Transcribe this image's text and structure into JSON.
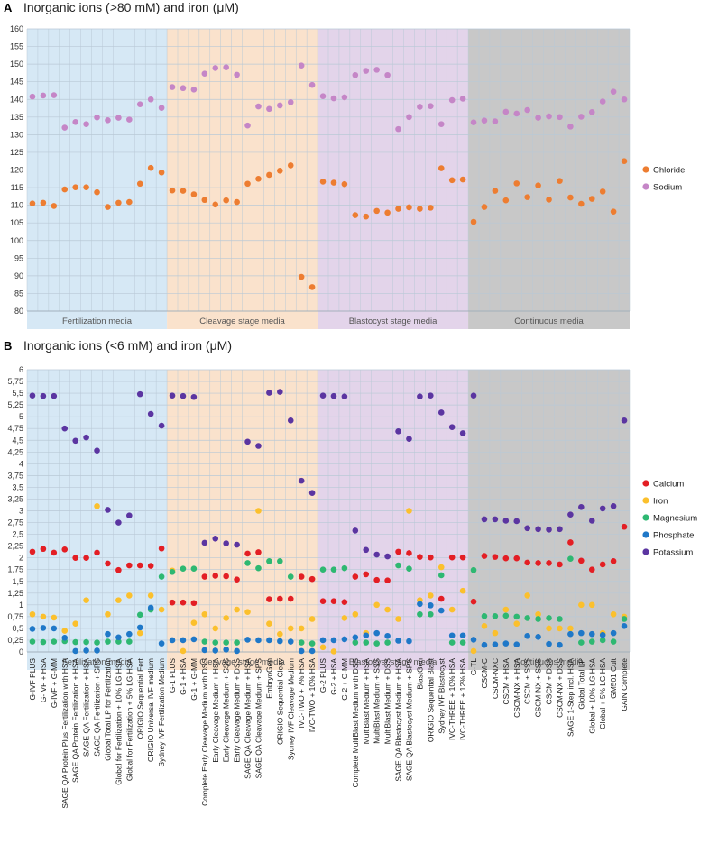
{
  "colors": {
    "Chloride": "#ed7d31",
    "Sodium": "#c586c7",
    "Calcium": "#e31e24",
    "Iron": "#fbc02d",
    "Magnesium": "#2eb872",
    "Phosphate": "#1f78c8",
    "Potassium": "#5b35a1",
    "groups": [
      "#d6e8f5",
      "#fae2cc",
      "#e3d4ea",
      "#c8c8c8"
    ],
    "group_bar": [
      "#c9e0f0",
      "#f4d2b3",
      "#d4c1df",
      "#b9b9b9"
    ],
    "grid": "#b9c9d6"
  },
  "categories": [
    "G-IVF PLUS",
    "G-IVF + HSA",
    "G-IVF + G-MM",
    "SAGE QA Protein Plus Fertilization with HSA",
    "SAGE QA Protein Fertilization + HSA",
    "SAGE QA Fertilization + HSA",
    "SAGE QA Fertilization + SPS",
    "Global Total LP for Fertilization",
    "Global for Fertilization + 10% LG HSA",
    "Global for Fertilization + 5% LG HSA",
    "ORIGIO Sequential Fert",
    "ORIGIO Universal IVF medium",
    "Sydney IVF Fertilization Medium",
    "G-1 PLUS",
    "G-1 + HSA",
    "G-1 + G-MM",
    "Complete Early Cleavage Medium with DSS",
    "Early Cleavage Medium + HSA",
    "Early Cleavage Medium + SSS",
    "Early Cleavage Medium + DSS",
    "SAGE QA Cleavage Medium + HSA",
    "SAGE QA Cleavage Medium + SPS",
    "EmbryoGen",
    "ORIGIO Sequential Cleav",
    "Sydney IVF Cleavage Medium",
    "IVC-TWO + 7% HSA",
    "IVC-TWO + 10% HSA",
    "G-2 PLUS",
    "G-2 + HSA",
    "G-2 + G-MM",
    "Complete MultiBlast Medium with DSS",
    "MultiBlast Medium + HSA",
    "MultiBlast Medium + SSS",
    "MultiBlast Medium + DSS",
    "SAGE QA Blastocyst Medium + HSA",
    "SAGE QA Blastocyst Medium + SPS",
    "BlastGen",
    "ORIGIO Sequential Blast",
    "Sydney IVF Blastocyst",
    "IVC-THREE + 10% HSA",
    "IVC-THREE + 12% HSA",
    "G-TL",
    "CSCM-C",
    "CSCM-NXC",
    "CSCM + HSA",
    "CSCM-NX + HSA",
    "CSCM + SSS",
    "CSCM-NX + SSS",
    "CSCM + DSS",
    "CSCM-NX + DSS",
    "SAGE 1-Step incl. HSA",
    "Global Total LP",
    "Global + 10% LG HSA",
    "Global + 5% LG HSA",
    "GM501 Cult",
    "GAIN Complete"
  ],
  "groups": [
    {
      "label": "Fertilization media",
      "start": 0,
      "end": 12
    },
    {
      "label": "Cleavage stage media",
      "start": 13,
      "end": 26
    },
    {
      "label": "Blastocyst stage media",
      "start": 27,
      "end": 40
    },
    {
      "label": "Continuous media",
      "start": 41,
      "end": 55
    }
  ],
  "chart_data": [
    {
      "type": "scatter",
      "panel": "A",
      "title": "Inorganic ions (>80 mM) and iron (μM)",
      "ylim": [
        80,
        160
      ],
      "yticks": [
        "80",
        "85",
        "90",
        "95",
        "100",
        "105",
        "110",
        "115",
        "120",
        "125",
        "130",
        "135",
        "140",
        "145",
        "150",
        "155",
        "160"
      ],
      "legend": [
        "Chloride",
        "Sodium"
      ],
      "series": [
        {
          "name": "Chloride",
          "values": [
            110.5,
            110.7,
            109.8,
            114.5,
            115.1,
            115.1,
            113.7,
            109.5,
            110.7,
            110.9,
            116.1,
            120.6,
            119.3,
            114.2,
            114.1,
            113.1,
            111.5,
            110.2,
            111.4,
            110.9,
            116.1,
            117.5,
            118.6,
            119.8,
            121.3,
            89.7,
            86.8,
            116.7,
            116.4,
            116.0,
            107.2,
            106.8,
            108.4,
            107.9,
            109.0,
            109.4,
            109.0,
            109.3,
            120.5,
            117.1,
            117.3,
            105.3,
            109.5,
            114.1,
            111.4,
            116.2,
            112.3,
            115.6,
            111.6,
            116.9,
            112.2,
            110.4,
            111.8,
            113.9,
            108.2,
            122.5
          ]
        },
        {
          "name": "Sodium",
          "values": [
            140.8,
            141.1,
            141.2,
            132.0,
            133.6,
            133.0,
            134.9,
            134.1,
            134.8,
            134.3,
            138.6,
            140.0,
            137.6,
            143.5,
            143.2,
            142.8,
            147.3,
            148.9,
            149.1,
            147.0,
            132.6,
            138.0,
            137.3,
            138.3,
            139.2,
            149.6,
            144.1,
            140.9,
            140.3,
            140.6,
            146.9,
            148.1,
            148.4,
            146.9,
            131.6,
            135.0,
            137.9,
            138.1,
            133.0,
            139.8,
            140.2,
            133.5,
            134.0,
            133.8,
            136.5,
            136.0,
            137.0,
            134.8,
            135.2,
            135.0,
            132.3,
            135.1,
            136.4,
            139.4,
            142.2,
            140.0
          ]
        }
      ]
    },
    {
      "type": "scatter",
      "panel": "B",
      "title": "Inorganic ions (<6 mM) and iron (μM)",
      "ylim": [
        0,
        6
      ],
      "yticks": [
        "0",
        "0,25",
        "0,5",
        "0,75",
        "1",
        "1,25",
        "1,5",
        "1,75",
        "2",
        "2,25",
        "2,5",
        "2,75",
        "3",
        "3,25",
        "3,5",
        "3,75",
        "4",
        "4,25",
        "4,5",
        "4,75",
        "5",
        "5,25",
        "5,5",
        "5,75",
        "6"
      ],
      "legend": [
        "Calcium",
        "Iron",
        "Magnesium",
        "Phosphate",
        "Potassium"
      ],
      "series": [
        {
          "name": "Calcium",
          "values": [
            2.13,
            2.19,
            2.11,
            2.18,
            2.0,
            2.0,
            2.11,
            1.88,
            1.74,
            1.84,
            1.84,
            1.83,
            2.2,
            1.05,
            1.05,
            1.04,
            1.6,
            1.62,
            1.61,
            1.54,
            2.09,
            2.12,
            1.12,
            1.13,
            1.13,
            1.6,
            1.55,
            1.08,
            1.08,
            1.06,
            1.6,
            1.65,
            1.53,
            1.52,
            2.13,
            2.1,
            2.02,
            2.01,
            1.13,
            2.01,
            2.01,
            1.07,
            2.04,
            2.02,
            1.99,
            1.99,
            1.9,
            1.89,
            1.89,
            1.86,
            2.33,
            1.94,
            1.75,
            1.86,
            1.93,
            2.66
          ]
        },
        {
          "name": "Iron",
          "values": [
            0.8,
            0.75,
            0.73,
            0.45,
            0.6,
            1.1,
            3.1,
            0.8,
            1.1,
            1.2,
            0.4,
            1.2,
            0.9,
            1.73,
            0.02,
            0.62,
            0.8,
            0.5,
            0.72,
            0.9,
            0.85,
            3.0,
            0.6,
            0.38,
            0.5,
            0.5,
            0.7,
            0.1,
            0.01,
            0.72,
            0.8,
            0.4,
            1.0,
            0.9,
            0.7,
            3.0,
            1.1,
            1.2,
            1.8,
            0.9,
            1.3,
            0.02,
            0.55,
            0.4,
            0.9,
            0.6,
            1.2,
            0.8,
            0.5,
            0.5,
            0.5,
            1.0,
            1.0,
            0.4,
            0.8,
            0.75
          ]
        },
        {
          "name": "Magnesium",
          "values": [
            0.22,
            0.21,
            0.22,
            0.23,
            0.21,
            0.21,
            0.2,
            0.22,
            0.22,
            0.22,
            0.79,
            0.9,
            1.6,
            1.7,
            1.77,
            1.77,
            0.22,
            0.2,
            0.2,
            0.2,
            1.89,
            1.78,
            1.93,
            1.93,
            1.6,
            0.2,
            0.18,
            1.75,
            1.75,
            1.78,
            0.2,
            0.2,
            0.18,
            0.2,
            1.84,
            1.77,
            0.8,
            0.8,
            1.63,
            0.2,
            0.2,
            1.74,
            0.76,
            0.76,
            0.77,
            0.75,
            0.72,
            0.7,
            0.72,
            0.7,
            1.98,
            0.2,
            0.22,
            0.25,
            0.22,
            0.7
          ]
        },
        {
          "name": "Phosphate",
          "values": [
            0.49,
            0.51,
            0.5,
            0.3,
            0.02,
            0.03,
            0.03,
            0.38,
            0.31,
            0.38,
            0.52,
            0.94,
            0.18,
            0.25,
            0.25,
            0.27,
            0.04,
            0.03,
            0.05,
            0.02,
            0.26,
            0.25,
            0.25,
            0.23,
            0.22,
            0.02,
            0.02,
            0.25,
            0.25,
            0.27,
            0.31,
            0.35,
            0.4,
            0.34,
            0.24,
            0.23,
            1.02,
            0.99,
            0.88,
            0.35,
            0.35,
            0.26,
            0.15,
            0.16,
            0.18,
            0.16,
            0.34,
            0.32,
            0.17,
            0.15,
            0.38,
            0.4,
            0.38,
            0.36,
            0.4,
            0.55
          ]
        },
        {
          "name": "Potassium",
          "values": [
            5.45,
            5.44,
            5.44,
            4.75,
            4.49,
            4.56,
            4.28,
            3.02,
            2.75,
            2.9,
            5.48,
            5.06,
            4.81,
            5.45,
            5.44,
            5.42,
            2.32,
            2.41,
            2.31,
            2.28,
            4.47,
            4.38,
            5.51,
            5.53,
            4.92,
            3.64,
            3.38,
            5.45,
            5.44,
            5.43,
            2.58,
            2.17,
            2.07,
            2.03,
            4.69,
            4.53,
            5.43,
            5.45,
            5.09,
            4.78,
            4.65,
            5.45,
            2.82,
            2.82,
            2.79,
            2.78,
            2.63,
            2.61,
            2.6,
            2.61,
            2.92,
            3.08,
            2.79,
            3.05,
            3.1,
            4.92
          ]
        }
      ]
    }
  ]
}
